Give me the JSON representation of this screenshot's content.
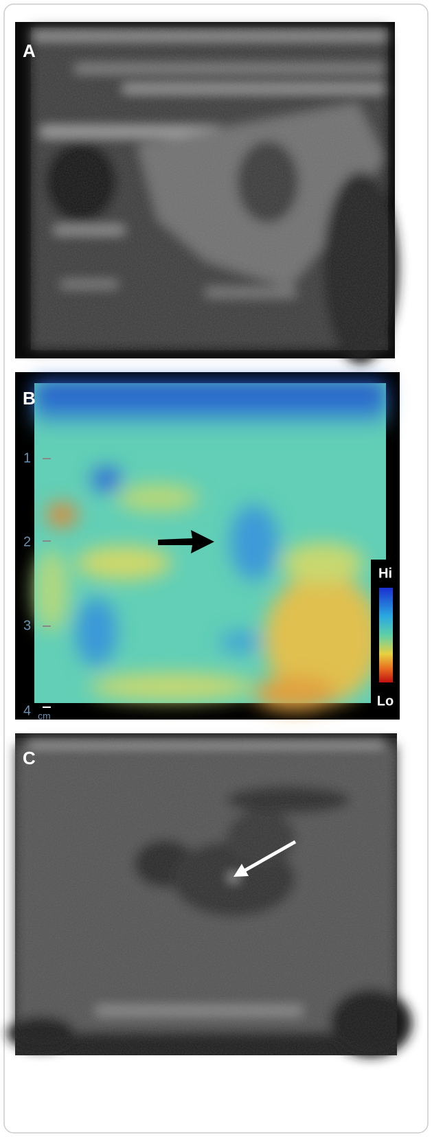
{
  "panels": [
    {
      "label": "A"
    },
    {
      "label": "B",
      "depth_ticks": [
        "1",
        "2",
        "3",
        "4"
      ],
      "depth_unit": "cm",
      "scale_high": "Hi",
      "scale_low": "Lo"
    },
    {
      "label": "C"
    }
  ]
}
